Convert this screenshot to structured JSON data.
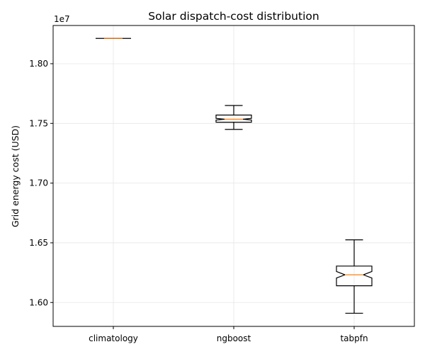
{
  "chart_data": {
    "type": "box",
    "title": "Solar dispatch-cost distribution",
    "xlabel": "",
    "ylabel": "Grid energy cost (USD)",
    "y_offset_label": "1e7",
    "ylim": [
      1.58,
      1.832
    ],
    "yticks": [
      1.6,
      1.65,
      1.7,
      1.75,
      1.8
    ],
    "ytick_labels": [
      "1.60",
      "1.65",
      "1.70",
      "1.75",
      "1.80"
    ],
    "grid": true,
    "notched": true,
    "categories": [
      "climatology",
      "ngboost",
      "tabpfn"
    ],
    "boxes": [
      {
        "label": "climatology",
        "whisker_low": 1.8212,
        "q1": 1.8212,
        "median": 1.8212,
        "q3": 1.8212,
        "whisker_high": 1.8212,
        "notch_low": 1.8212,
        "notch_high": 1.8212
      },
      {
        "label": "ngboost",
        "whisker_low": 1.745,
        "q1": 1.751,
        "median": 1.7535,
        "q3": 1.757,
        "whisker_high": 1.765,
        "notch_low": 1.7528,
        "notch_high": 1.7542
      },
      {
        "label": "tabpfn",
        "whisker_low": 1.591,
        "q1": 1.614,
        "median": 1.6232,
        "q3": 1.6305,
        "whisker_high": 1.6525,
        "notch_low": 1.6205,
        "notch_high": 1.626
      }
    ],
    "colors": {
      "box": "#000000",
      "median": "#ff7f0e",
      "grid": "#e6e6e6"
    }
  }
}
